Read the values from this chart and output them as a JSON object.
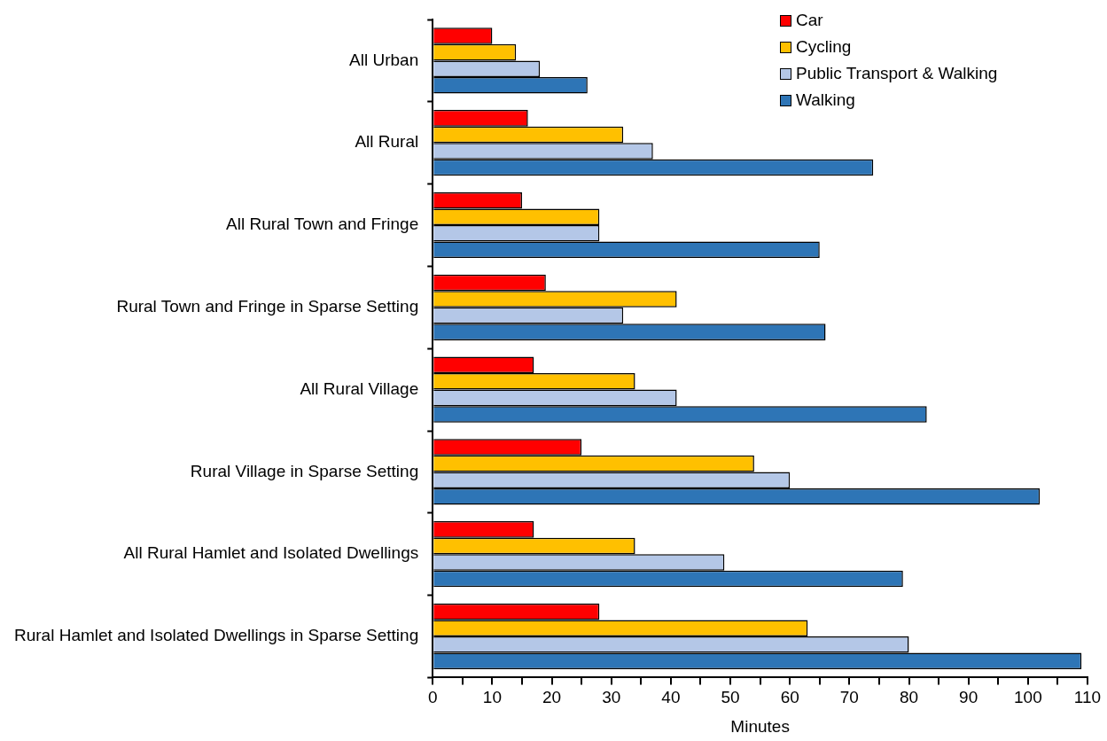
{
  "chart_data": {
    "type": "bar",
    "orientation": "horizontal",
    "xlabel": "Minutes",
    "categories": [
      "All Urban",
      "All Rural",
      "All Rural Town and Fringe",
      "Rural Town and Fringe in Sparse Setting",
      "All Rural Village",
      "Rural Village in Sparse Setting",
      "All Rural Hamlet and Isolated Dwellings",
      "Rural Hamlet and Isolated Dwellings in Sparse Setting"
    ],
    "series": [
      {
        "name": "Car",
        "color": "#ff0000",
        "values": [
          10,
          16,
          15,
          19,
          17,
          25,
          17,
          28
        ]
      },
      {
        "name": "Cycling",
        "color": "#ffc000",
        "values": [
          14,
          32,
          28,
          41,
          34,
          54,
          34,
          63
        ]
      },
      {
        "name": "Public Transport & Walking",
        "color": "#b4c7e7",
        "values": [
          18,
          37,
          28,
          32,
          41,
          60,
          49,
          80
        ]
      },
      {
        "name": "Walking",
        "color": "#2e75b6",
        "values": [
          26,
          74,
          65,
          66,
          83,
          102,
          79,
          109
        ]
      }
    ],
    "xlim": [
      0,
      110
    ],
    "xticks": [
      0,
      {
        "value": 5,
        "label": null
      },
      10,
      {
        "value": 15,
        "label": null
      },
      20,
      {
        "value": 25,
        "label": null
      },
      30,
      {
        "value": 35,
        "label": null
      },
      40,
      {
        "value": 45,
        "label": null
      },
      50,
      {
        "value": 55,
        "label": null
      },
      60,
      {
        "value": 65,
        "label": null
      },
      70,
      {
        "value": 75,
        "label": null
      },
      80,
      {
        "value": 85,
        "label": null
      },
      90,
      {
        "value": 95,
        "label": null
      },
      100,
      {
        "value": 105,
        "label": null
      },
      110
    ],
    "grid": false,
    "legend": "top right"
  }
}
